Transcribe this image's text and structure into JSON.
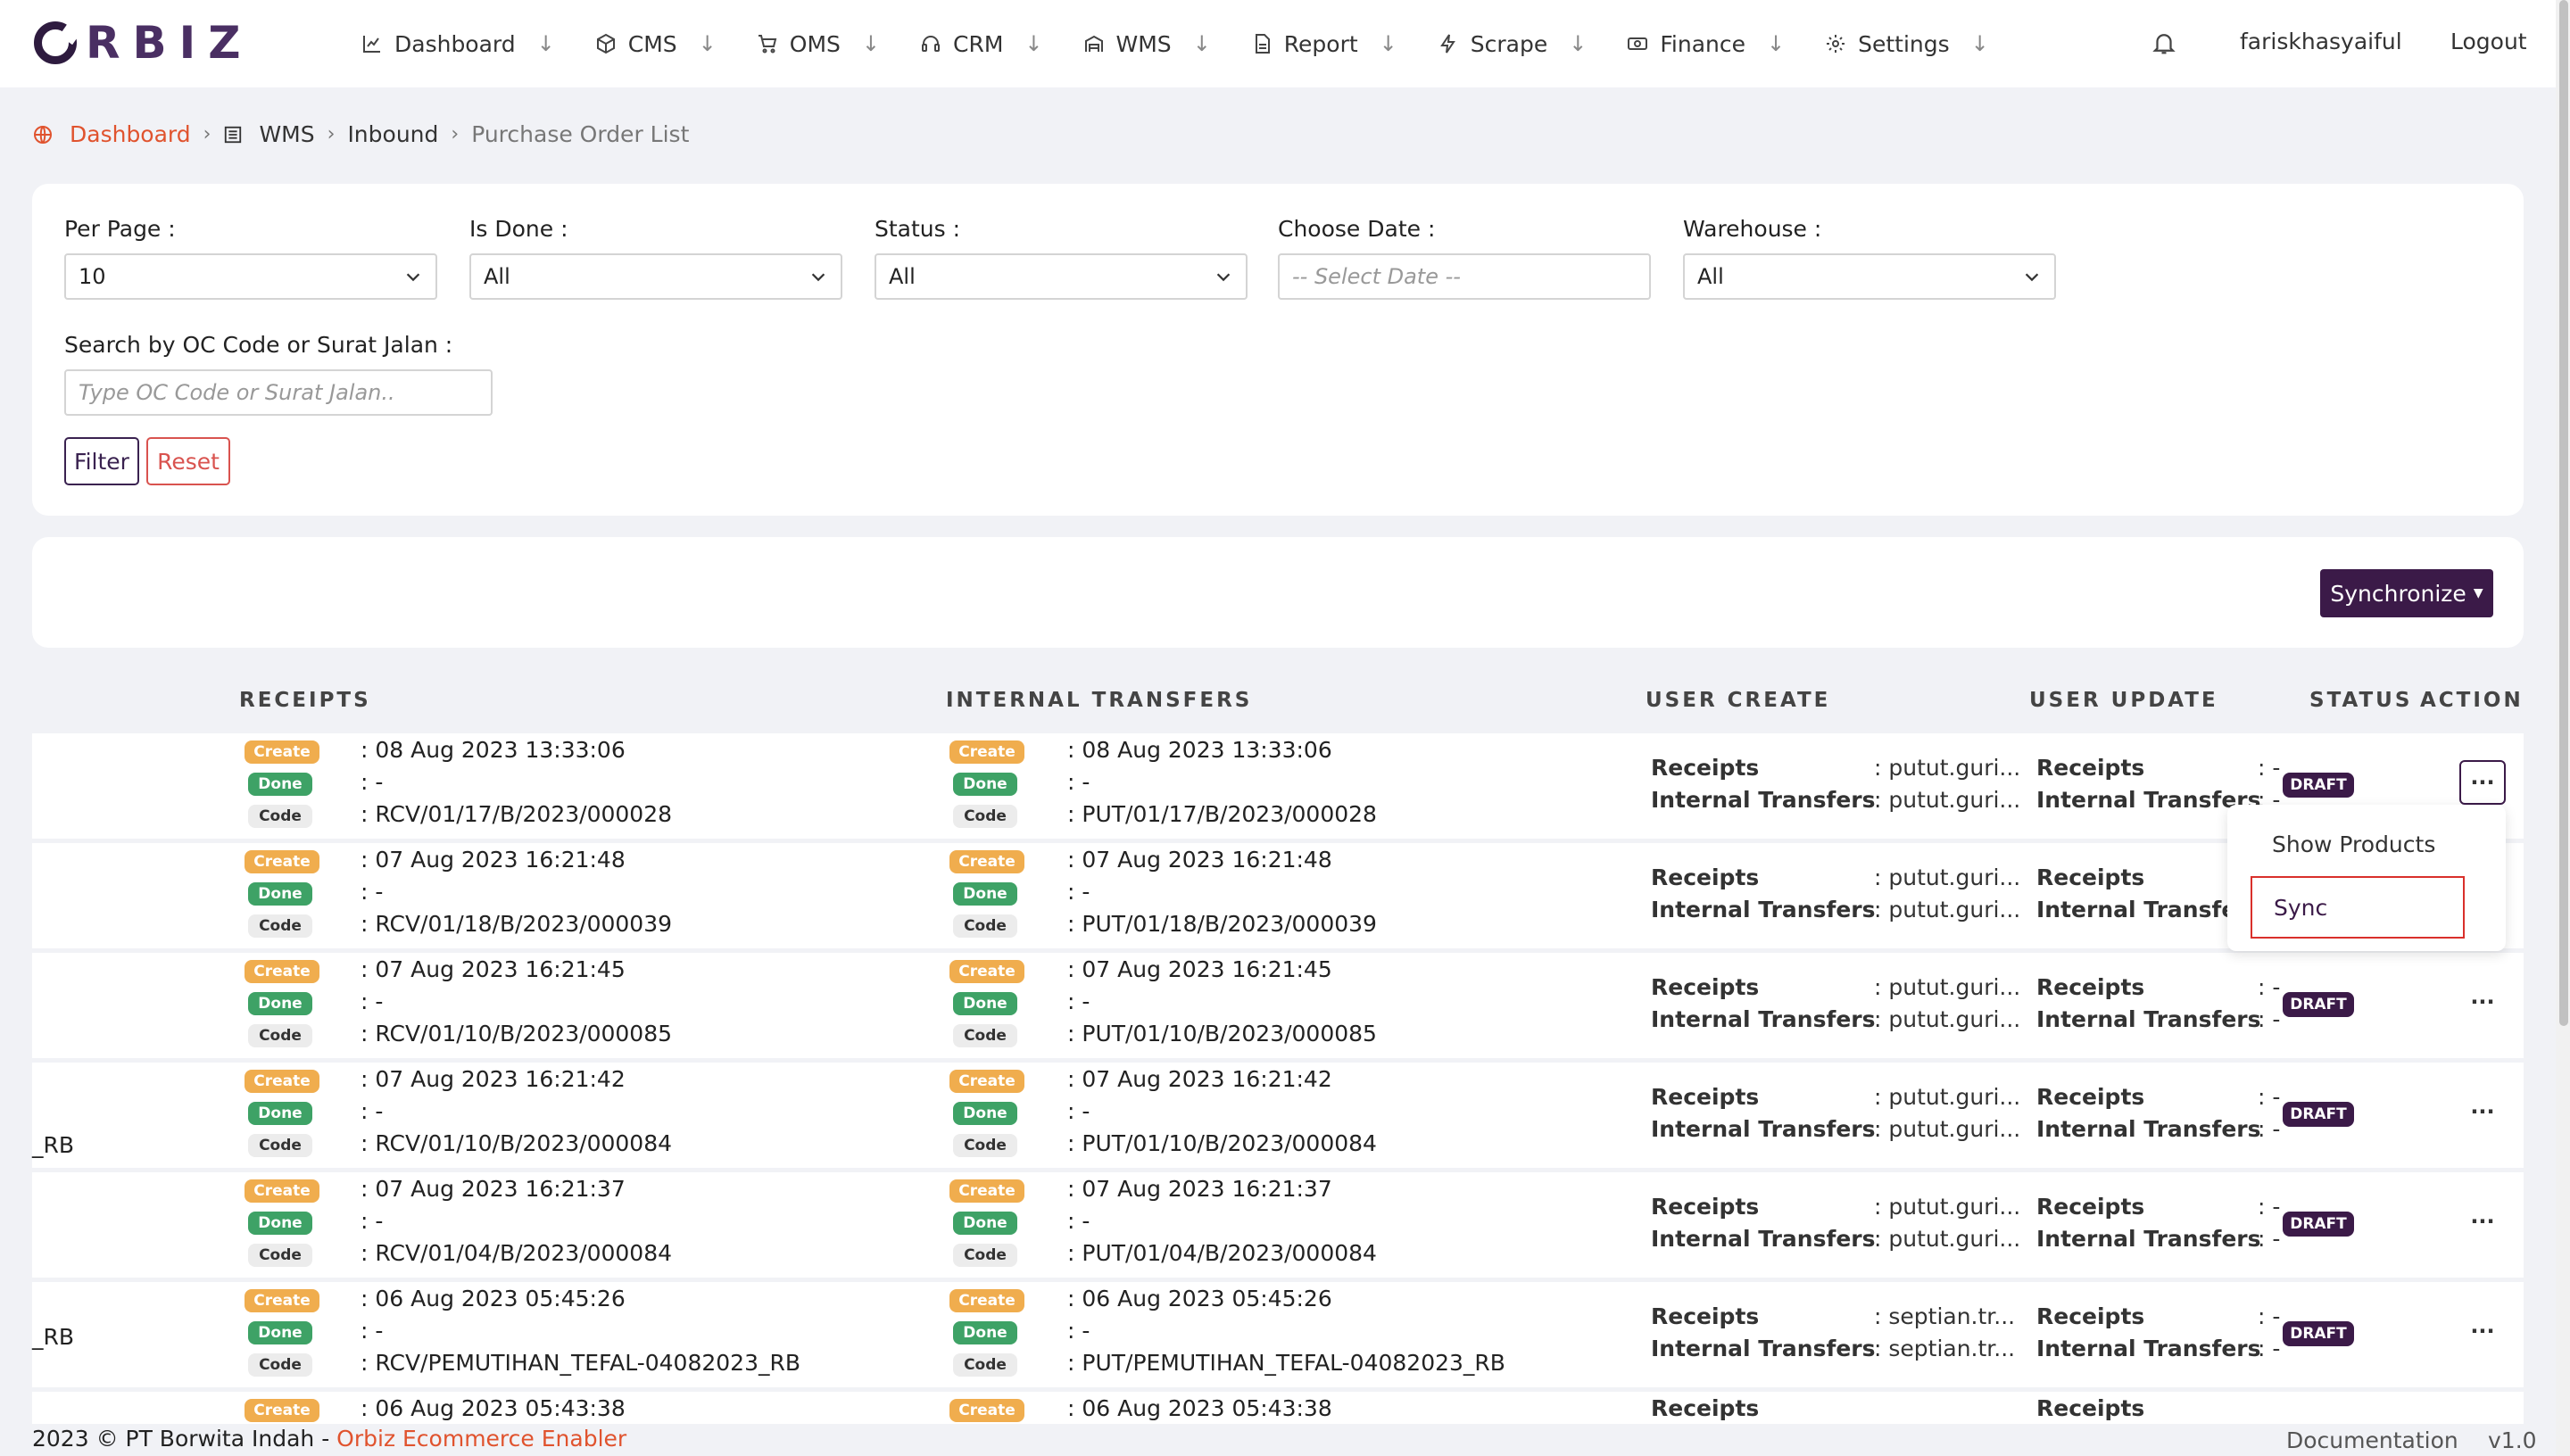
{
  "navbar": {
    "logo": "ORBIZ",
    "logo_rest": "RBIZ",
    "menu": [
      {
        "label": "Dashboard",
        "icon": "chart-line-icon"
      },
      {
        "label": "CMS",
        "icon": "box-icon"
      },
      {
        "label": "OMS",
        "icon": "cart-icon"
      },
      {
        "label": "CRM",
        "icon": "headset-icon"
      },
      {
        "label": "WMS",
        "icon": "warehouse-icon"
      },
      {
        "label": "Report",
        "icon": "file-icon"
      },
      {
        "label": "Scrape",
        "icon": "bolt-icon"
      },
      {
        "label": "Finance",
        "icon": "money-icon"
      },
      {
        "label": "Settings",
        "icon": "gear-icon"
      }
    ],
    "user": "fariskhasyaiful",
    "logout": "Logout"
  },
  "breadcrumb": {
    "home": "Dashboard",
    "wms": "WMS",
    "inbound": "Inbound",
    "current": "Purchase Order List"
  },
  "filters": {
    "per_page_label": "Per Page :",
    "per_page_value": "10",
    "is_done_label": "Is Done :",
    "is_done_value": "All",
    "status_label": "Status :",
    "status_value": "All",
    "date_label": "Choose Date :",
    "date_placeholder": "-- Select Date --",
    "warehouse_label": "Warehouse :",
    "warehouse_value": "All",
    "search_label": "Search by OC Code or Surat Jalan :",
    "search_placeholder": "Type OC Code or Surat Jalan..",
    "filter_button": "Filter",
    "reset_button": "Reset"
  },
  "sync_button": "Synchronize",
  "table": {
    "headers": {
      "receipts": "RECEIPTS",
      "internal_transfers": "INTERNAL TRANSFERS",
      "user_create": "USER CREATE",
      "user_update": "USER UPDATE",
      "status": "STATUS",
      "action": "ACTION"
    },
    "badges": {
      "create": "Create",
      "done": "Done",
      "code": "Code"
    },
    "user_labels": {
      "receipts": "Receipts",
      "internal": "Internal Transfers"
    },
    "rows": [
      {
        "prefix1": "",
        "prefix2": "",
        "r_create": ": 08 Aug 2023 13:33:06",
        "r_done": ": -",
        "r_code": ": RCV/01/17/B/2023/000028",
        "i_create": ": 08 Aug 2023 13:33:06",
        "i_done": ": -",
        "i_code": ": PUT/01/17/B/2023/000028",
        "uc_r": ": putut.guri...",
        "uc_i": ": putut.guri...",
        "uu_r": ": -",
        "uu_i": ": -",
        "status": "DRAFT"
      },
      {
        "prefix1": "",
        "prefix2": "",
        "r_create": ": 07 Aug 2023 16:21:48",
        "r_done": ": -",
        "r_code": ": RCV/01/18/B/2023/000039",
        "i_create": ": 07 Aug 2023 16:21:48",
        "i_done": ": -",
        "i_code": ": PUT/01/18/B/2023/000039",
        "uc_r": ": putut.guri...",
        "uc_i": ": putut.guri...",
        "uu_r": "",
        "uu_i": "",
        "status": ""
      },
      {
        "prefix1": "",
        "prefix2": "",
        "r_create": ": 07 Aug 2023 16:21:45",
        "r_done": ": -",
        "r_code": ": RCV/01/10/B/2023/000085",
        "i_create": ": 07 Aug 2023 16:21:45",
        "i_done": ": -",
        "i_code": ": PUT/01/10/B/2023/000085",
        "uc_r": ": putut.guri...",
        "uc_i": ": putut.guri...",
        "uu_r": ": -",
        "uu_i": ": -",
        "status": "DRAFT"
      },
      {
        "prefix1": "",
        "prefix2": "",
        "r_create": ": 07 Aug 2023 16:21:42",
        "r_done": ": -",
        "r_code": ": RCV/01/10/B/2023/000084",
        "i_create": ": 07 Aug 2023 16:21:42",
        "i_done": ": -",
        "i_code": ": PUT/01/10/B/2023/000084",
        "uc_r": ": putut.guri...",
        "uc_i": ": putut.guri...",
        "uu_r": ": -",
        "uu_i": ": -",
        "status": "DRAFT"
      },
      {
        "prefix1": "",
        "prefix2": "",
        "r_create": ": 07 Aug 2023 16:21:37",
        "r_done": ": -",
        "r_code": ": RCV/01/04/B/2023/000084",
        "i_create": ": 07 Aug 2023 16:21:37",
        "i_done": ": -",
        "i_code": ": PUT/01/04/B/2023/000084",
        "uc_r": ": putut.guri...",
        "uc_i": ": putut.guri...",
        "uu_r": ": -",
        "uu_i": ": -",
        "status": "DRAFT"
      },
      {
        "prefix1": "_RB",
        "prefix2": "_RB",
        "r_create": ": 06 Aug 2023 05:45:26",
        "r_done": ": -",
        "r_code": ": RCV/PEMUTIHAN_TEFAL-04082023_RB",
        "i_create": ": 06 Aug 2023 05:45:26",
        "i_done": ": -",
        "i_code": ": PUT/PEMUTIHAN_TEFAL-04082023_RB",
        "uc_r": ": septian.tr...",
        "uc_i": ": septian.tr...",
        "uu_r": ": -",
        "uu_i": ": -",
        "status": "DRAFT"
      },
      {
        "prefix1": "",
        "prefix2": "",
        "r_create": ": 06 Aug 2023 05:43:38",
        "r_done": "",
        "r_code": "",
        "i_create": ": 06 Aug 2023 05:43:38",
        "i_done": "",
        "i_code": "",
        "uc_r": "",
        "uc_i": "",
        "uu_r": "",
        "uu_i": "",
        "status": ""
      }
    ]
  },
  "dropdown": {
    "show_products": "Show Products",
    "sync": "Sync"
  },
  "footer": {
    "copyright": "2023 © PT Borwita Indah - ",
    "brand": "Orbiz Ecommerce Enabler",
    "documentation": "Documentation",
    "version": "v1.0"
  }
}
